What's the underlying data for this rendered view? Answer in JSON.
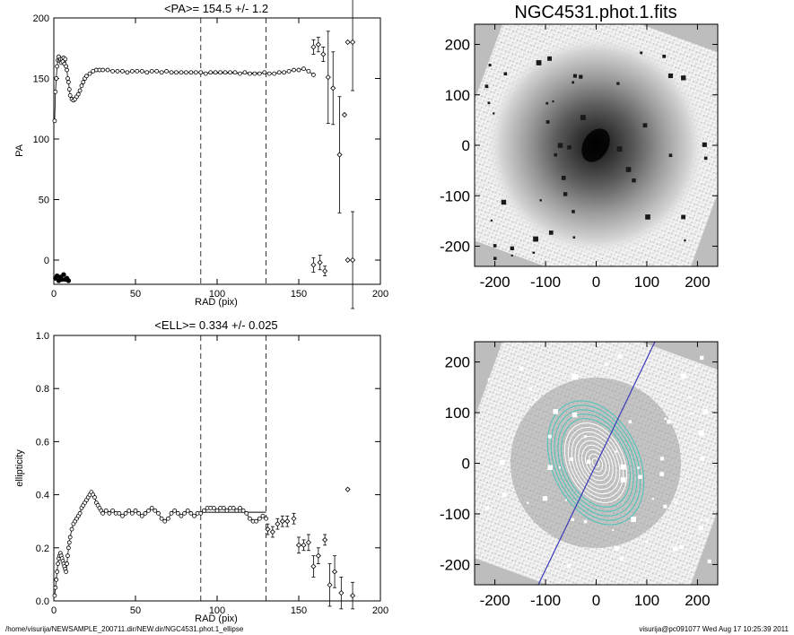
{
  "footer": {
    "path": "/home/visurija/NEWSAMPLE_200711.dir/NEW.dir/NGC4531.phot.1_ellipse",
    "stamp": "visurija@pc091077  Wed Aug 17 10:25:39 2011"
  },
  "chart_data": [
    {
      "type": "scatter",
      "title": "<PA>= 154.5 +/-   1.2",
      "xlabel": "RAD (pix)",
      "ylabel": "PA",
      "xlim": [
        0,
        200
      ],
      "ylim": [
        -20,
        200
      ],
      "xticks": [
        0,
        50,
        100,
        150,
        200
      ],
      "yticks": [
        0,
        50,
        100,
        150,
        200
      ],
      "vlines": [
        90,
        130
      ],
      "mean_line": {
        "y": 154.5,
        "x": [
          90,
          130
        ]
      },
      "points": [
        [
          0.5,
          115
        ],
        [
          1,
          139
        ],
        [
          1.5,
          150
        ],
        [
          2,
          160
        ],
        [
          2.5,
          165
        ],
        [
          3,
          168
        ],
        [
          3.5,
          165
        ],
        [
          4,
          166
        ],
        [
          4.5,
          163
        ],
        [
          5,
          166
        ],
        [
          5.5,
          164
        ],
        [
          6,
          167
        ],
        [
          6.5,
          162
        ],
        [
          7,
          166
        ],
        [
          7.5,
          160
        ],
        [
          8,
          157
        ],
        [
          8.5,
          150
        ],
        [
          9,
          147
        ],
        [
          9.5,
          141
        ],
        [
          10,
          136
        ],
        [
          11,
          133
        ],
        [
          12,
          132
        ],
        [
          13,
          133
        ],
        [
          14,
          135
        ],
        [
          15,
          137
        ],
        [
          16,
          140
        ],
        [
          17,
          144
        ],
        [
          18,
          147
        ],
        [
          19,
          150
        ],
        [
          20,
          152
        ],
        [
          22,
          154
        ],
        [
          24,
          156
        ],
        [
          26,
          157
        ],
        [
          28,
          157
        ],
        [
          30,
          157
        ],
        [
          33,
          157
        ],
        [
          36,
          156
        ],
        [
          39,
          156
        ],
        [
          42,
          156
        ],
        [
          45,
          155
        ],
        [
          48,
          156
        ],
        [
          51,
          156
        ],
        [
          54,
          156
        ],
        [
          57,
          155
        ],
        [
          60,
          156
        ],
        [
          63,
          156
        ],
        [
          66,
          155
        ],
        [
          69,
          156
        ],
        [
          72,
          155
        ],
        [
          75,
          155
        ],
        [
          78,
          155
        ],
        [
          81,
          155
        ],
        [
          84,
          155
        ],
        [
          87,
          155
        ],
        [
          90,
          155
        ],
        [
          93,
          154
        ],
        [
          96,
          155
        ],
        [
          99,
          155
        ],
        [
          102,
          155
        ],
        [
          105,
          155
        ],
        [
          108,
          155
        ],
        [
          111,
          155
        ],
        [
          114,
          154
        ],
        [
          117,
          155
        ],
        [
          120,
          154
        ],
        [
          123,
          154
        ],
        [
          126,
          154
        ],
        [
          129,
          155
        ],
        [
          132,
          154
        ],
        [
          135,
          154
        ],
        [
          138,
          155
        ],
        [
          141,
          155
        ],
        [
          144,
          156
        ],
        [
          147,
          157
        ],
        [
          150,
          157
        ],
        [
          153,
          158
        ],
        [
          156,
          156
        ],
        [
          159,
          153
        ]
      ],
      "low_points": [
        [
          1,
          -15
        ],
        [
          2,
          -13
        ],
        [
          3,
          -17
        ],
        [
          4,
          -14
        ],
        [
          5,
          -16
        ],
        [
          6,
          -12
        ],
        [
          7,
          -16
        ],
        [
          8,
          -15
        ],
        [
          9,
          -17
        ]
      ],
      "error_points": [
        {
          "x": 159,
          "y": 176,
          "err": 6
        },
        {
          "x": 162,
          "y": 178,
          "err": 6
        },
        {
          "x": 165,
          "y": 170,
          "err": 6
        },
        {
          "x": 168,
          "y": 151,
          "err": 38
        },
        {
          "x": 171,
          "y": 142,
          "err": 30
        },
        {
          "x": 175,
          "y": 87,
          "err": 48
        },
        {
          "x": 178,
          "y": 120,
          "err": 0
        },
        {
          "x": 180,
          "y": 180,
          "err": 0
        },
        {
          "x": 183,
          "y": 180,
          "err": 40
        },
        {
          "x": 159,
          "y": -4,
          "err": 6
        },
        {
          "x": 163,
          "y": -2,
          "err": 6
        },
        {
          "x": 166,
          "y": -9,
          "err": 4
        },
        {
          "x": 180,
          "y": 0,
          "err": 0
        },
        {
          "x": 183,
          "y": 0,
          "err": 40
        }
      ]
    },
    {
      "type": "scatter",
      "title": "<ELL>= 0.334 +/-  0.025",
      "xlabel": "RAD (pix)",
      "ylabel": "ellipticity",
      "xlim": [
        0,
        200
      ],
      "ylim": [
        0,
        1
      ],
      "xticks": [
        0,
        50,
        100,
        150,
        200
      ],
      "yticks": [
        0.0,
        0.2,
        0.4,
        0.6,
        0.8,
        1.0
      ],
      "vlines": [
        90,
        130
      ],
      "mean_line": {
        "y": 0.334,
        "x": [
          90,
          130
        ]
      },
      "points": [
        [
          0.5,
          0.02
        ],
        [
          1,
          0.05
        ],
        [
          1.5,
          0.08
        ],
        [
          2,
          0.11
        ],
        [
          2.5,
          0.14
        ],
        [
          3,
          0.16
        ],
        [
          3.5,
          0.17
        ],
        [
          4,
          0.18
        ],
        [
          4.5,
          0.17
        ],
        [
          5,
          0.16
        ],
        [
          5.5,
          0.15
        ],
        [
          6,
          0.14
        ],
        [
          6.5,
          0.13
        ],
        [
          7,
          0.12
        ],
        [
          7.5,
          0.11
        ],
        [
          8,
          0.14
        ],
        [
          8.5,
          0.17
        ],
        [
          9,
          0.2
        ],
        [
          9.5,
          0.22
        ],
        [
          10,
          0.24
        ],
        [
          11,
          0.27
        ],
        [
          12,
          0.29
        ],
        [
          13,
          0.3
        ],
        [
          14,
          0.31
        ],
        [
          15,
          0.32
        ],
        [
          16,
          0.33
        ],
        [
          17,
          0.35
        ],
        [
          18,
          0.36
        ],
        [
          19,
          0.37
        ],
        [
          20,
          0.38
        ],
        [
          21,
          0.39
        ],
        [
          22,
          0.4
        ],
        [
          23,
          0.41
        ],
        [
          24,
          0.4
        ],
        [
          25,
          0.39
        ],
        [
          26,
          0.37
        ],
        [
          27,
          0.36
        ],
        [
          28,
          0.35
        ],
        [
          29,
          0.34
        ],
        [
          30,
          0.33
        ],
        [
          32,
          0.34
        ],
        [
          34,
          0.33
        ],
        [
          36,
          0.34
        ],
        [
          38,
          0.33
        ],
        [
          40,
          0.33
        ],
        [
          42,
          0.32
        ],
        [
          44,
          0.33
        ],
        [
          46,
          0.34
        ],
        [
          48,
          0.33
        ],
        [
          50,
          0.34
        ],
        [
          52,
          0.33
        ],
        [
          54,
          0.32
        ],
        [
          56,
          0.33
        ],
        [
          58,
          0.34
        ],
        [
          60,
          0.35
        ],
        [
          62,
          0.34
        ],
        [
          64,
          0.33
        ],
        [
          66,
          0.31
        ],
        [
          68,
          0.3
        ],
        [
          70,
          0.31
        ],
        [
          72,
          0.33
        ],
        [
          74,
          0.34
        ],
        [
          76,
          0.33
        ],
        [
          78,
          0.32
        ],
        [
          80,
          0.33
        ],
        [
          82,
          0.34
        ],
        [
          84,
          0.33
        ],
        [
          86,
          0.32
        ],
        [
          88,
          0.33
        ],
        [
          90,
          0.33
        ],
        [
          92,
          0.34
        ],
        [
          94,
          0.35
        ],
        [
          96,
          0.35
        ],
        [
          98,
          0.35
        ],
        [
          100,
          0.34
        ],
        [
          102,
          0.35
        ],
        [
          104,
          0.35
        ],
        [
          106,
          0.34
        ],
        [
          108,
          0.35
        ],
        [
          110,
          0.35
        ],
        [
          112,
          0.34
        ],
        [
          114,
          0.35
        ],
        [
          116,
          0.34
        ],
        [
          118,
          0.33
        ],
        [
          120,
          0.31
        ],
        [
          122,
          0.3
        ],
        [
          124,
          0.3
        ],
        [
          126,
          0.31
        ],
        [
          128,
          0.32
        ],
        [
          130,
          0.31
        ]
      ],
      "error_points": [
        {
          "x": 131,
          "y": 0.27,
          "err": 0.02
        },
        {
          "x": 134,
          "y": 0.26,
          "err": 0.02
        },
        {
          "x": 137,
          "y": 0.29,
          "err": 0.02
        },
        {
          "x": 140,
          "y": 0.3,
          "err": 0.02
        },
        {
          "x": 143,
          "y": 0.3,
          "err": 0.02
        },
        {
          "x": 147,
          "y": 0.31,
          "err": 0.02
        },
        {
          "x": 150,
          "y": 0.21,
          "err": 0.03
        },
        {
          "x": 153,
          "y": 0.21,
          "err": 0.02
        },
        {
          "x": 156,
          "y": 0.22,
          "err": 0.03
        },
        {
          "x": 159,
          "y": 0.13,
          "err": 0.04
        },
        {
          "x": 162,
          "y": 0.17,
          "err": 0.03
        },
        {
          "x": 166,
          "y": 0.23,
          "err": 0.02
        },
        {
          "x": 169,
          "y": 0.06,
          "err": 0.08
        },
        {
          "x": 172,
          "y": 0.11,
          "err": 0.06
        },
        {
          "x": 176,
          "y": 0.03,
          "err": 0.06
        },
        {
          "x": 180,
          "y": 0.42,
          "err": 0
        },
        {
          "x": 183,
          "y": 0.02,
          "err": 0.05
        }
      ]
    },
    {
      "type": "heatmap",
      "title": "NGC4531.phot.1.fits",
      "xlim": [
        -240,
        240
      ],
      "ylim": [
        -240,
        240
      ],
      "xticks": [
        -200,
        -100,
        0,
        100,
        200
      ],
      "yticks": [
        -200,
        -100,
        0,
        100,
        200
      ],
      "rotation_deg": 20,
      "contours": false
    },
    {
      "type": "heatmap",
      "title": "",
      "xlim": [
        -240,
        240
      ],
      "ylim": [
        -240,
        240
      ],
      "xticks": [
        -200,
        -100,
        0,
        100,
        200
      ],
      "yticks": [
        -200,
        -100,
        0,
        100,
        200
      ],
      "rotation_deg": 20,
      "contours": true,
      "pa_line_deg": 154.5,
      "ellipticity": 0.334,
      "contour_colors": {
        "outer": "#48c4b8",
        "inner": "#ffffff",
        "line": "#3a3ab8"
      }
    }
  ]
}
